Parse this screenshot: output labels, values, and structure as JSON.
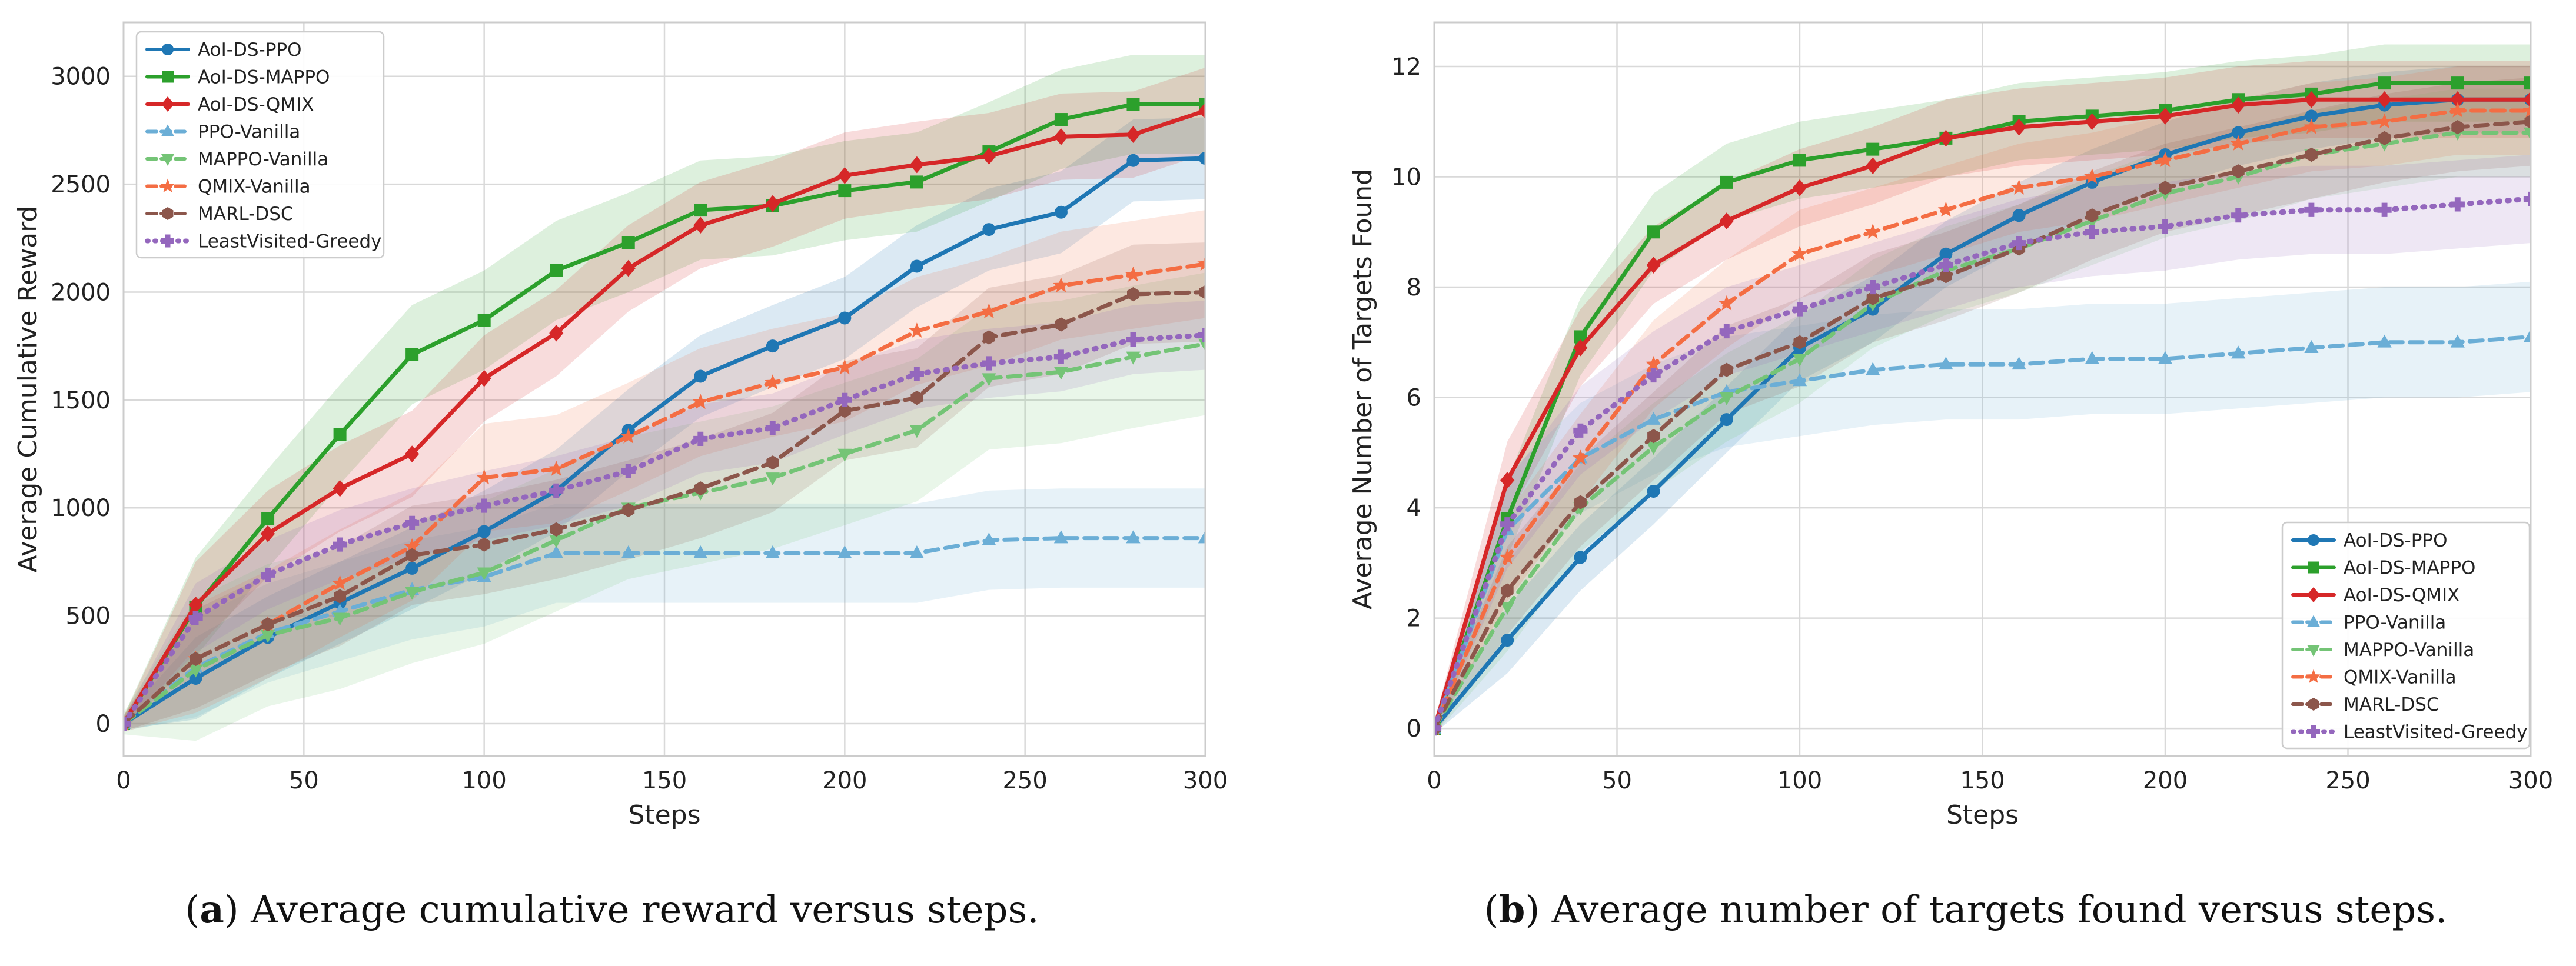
{
  "figure": {
    "captions": [
      {
        "label": "a",
        "text": "Average cumulative reward versus steps."
      },
      {
        "label": "b",
        "text": "Average number of targets found versus steps."
      }
    ]
  },
  "series_styles": [
    {
      "name": "AoI-DS-PPO",
      "color": "#1f77b4",
      "marker": "circle",
      "dash": "solid"
    },
    {
      "name": "AoI-DS-MAPPO",
      "color": "#2ca02c",
      "marker": "square",
      "dash": "solid"
    },
    {
      "name": "AoI-DS-QMIX",
      "color": "#d62728",
      "marker": "diamond",
      "dash": "solid"
    },
    {
      "name": "PPO-Vanilla",
      "color": "#6baed6",
      "marker": "triangle-up",
      "dash": "dashed"
    },
    {
      "name": "MAPPO-Vanilla",
      "color": "#74c476",
      "marker": "triangle-down",
      "dash": "dashed"
    },
    {
      "name": "QMIX-Vanilla",
      "color": "#f46d43",
      "marker": "star",
      "dash": "dashed"
    },
    {
      "name": "MARL-DSC",
      "color": "#8c564b",
      "marker": "hexagon",
      "dash": "dashed"
    },
    {
      "name": "LeastVisited-Greedy",
      "color": "#9467bd",
      "marker": "plus",
      "dash": "dotted"
    }
  ],
  "chart_data": [
    {
      "type": "line",
      "xlabel": "Steps",
      "ylabel": "Average Cumulative Reward",
      "xlim": [
        0,
        300
      ],
      "ylim": [
        -150,
        3250
      ],
      "xticks": [
        0,
        50,
        100,
        150,
        200,
        250,
        300
      ],
      "yticks": [
        0,
        500,
        1000,
        1500,
        2000,
        2500,
        3000
      ],
      "grid": true,
      "legend_position": "top-left",
      "x": [
        0,
        20,
        40,
        60,
        80,
        100,
        120,
        140,
        160,
        180,
        200,
        220,
        240,
        260,
        280,
        300
      ],
      "series": [
        {
          "name": "AoI-DS-PPO",
          "values": [
            0,
            210,
            400,
            560,
            720,
            890,
            1080,
            1360,
            1610,
            1750,
            1880,
            2120,
            2290,
            2370,
            2610,
            2620
          ],
          "band": 190
        },
        {
          "name": "AoI-DS-MAPPO",
          "values": [
            0,
            540,
            950,
            1340,
            1710,
            1870,
            2100,
            2230,
            2380,
            2400,
            2470,
            2510,
            2650,
            2800,
            2870,
            2870
          ],
          "band": 230
        },
        {
          "name": "AoI-DS-QMIX",
          "values": [
            0,
            550,
            880,
            1090,
            1250,
            1600,
            1810,
            2110,
            2310,
            2410,
            2540,
            2590,
            2630,
            2720,
            2730,
            2840
          ],
          "band": 200
        },
        {
          "name": "PPO-Vanilla",
          "values": [
            0,
            260,
            420,
            520,
            620,
            680,
            790,
            790,
            790,
            790,
            790,
            790,
            850,
            860,
            860,
            860
          ],
          "band": 230
        },
        {
          "name": "MAPPO-Vanilla",
          "values": [
            0,
            250,
            410,
            490,
            610,
            700,
            850,
            1000,
            1070,
            1140,
            1250,
            1360,
            1600,
            1630,
            1700,
            1760
          ],
          "band": 330
        },
        {
          "name": "QMIX-Vanilla",
          "values": [
            0,
            300,
            460,
            650,
            820,
            1140,
            1180,
            1330,
            1490,
            1580,
            1650,
            1820,
            1910,
            2030,
            2080,
            2130
          ],
          "band": 250
        },
        {
          "name": "MARL-DSC",
          "values": [
            0,
            300,
            460,
            590,
            780,
            830,
            900,
            990,
            1090,
            1210,
            1450,
            1510,
            1790,
            1850,
            1990,
            2000
          ],
          "band": 230
        },
        {
          "name": "LeastVisited-Greedy",
          "values": [
            0,
            490,
            690,
            830,
            930,
            1010,
            1080,
            1170,
            1320,
            1370,
            1500,
            1620,
            1670,
            1700,
            1780,
            1800
          ],
          "band": 160
        }
      ]
    },
    {
      "type": "line",
      "xlabel": "Steps",
      "ylabel": "Average Number of Targets Found",
      "xlim": [
        0,
        300
      ],
      "ylim": [
        -0.5,
        12.8
      ],
      "xticks": [
        0,
        50,
        100,
        150,
        200,
        250,
        300
      ],
      "yticks": [
        0,
        2,
        4,
        6,
        8,
        10,
        12
      ],
      "grid": true,
      "legend_position": "bottom-right",
      "x": [
        0,
        20,
        40,
        60,
        80,
        100,
        120,
        140,
        160,
        180,
        200,
        220,
        240,
        260,
        280,
        300
      ],
      "series": [
        {
          "name": "AoI-DS-PPO",
          "values": [
            0,
            1.6,
            3.1,
            4.3,
            5.6,
            6.9,
            7.6,
            8.6,
            9.3,
            9.9,
            10.4,
            10.8,
            11.1,
            11.3,
            11.4,
            11.4
          ],
          "band": 0.6
        },
        {
          "name": "AoI-DS-MAPPO",
          "values": [
            0,
            3.8,
            7.1,
            9.0,
            9.9,
            10.3,
            10.5,
            10.7,
            11.0,
            11.1,
            11.2,
            11.4,
            11.5,
            11.7,
            11.7,
            11.7
          ],
          "band": 0.7
        },
        {
          "name": "AoI-DS-QMIX",
          "values": [
            0,
            4.5,
            6.9,
            8.4,
            9.2,
            9.8,
            10.2,
            10.7,
            10.9,
            11.0,
            11.1,
            11.3,
            11.4,
            11.4,
            11.4,
            11.4
          ],
          "band": 0.7
        },
        {
          "name": "PPO-Vanilla",
          "values": [
            0,
            3.6,
            4.9,
            5.6,
            6.1,
            6.3,
            6.5,
            6.6,
            6.6,
            6.7,
            6.7,
            6.8,
            6.9,
            7.0,
            7.0,
            7.1
          ],
          "band": 1.0
        },
        {
          "name": "MAPPO-Vanilla",
          "values": [
            0,
            2.2,
            4.0,
            5.1,
            6.0,
            6.7,
            7.7,
            8.3,
            8.7,
            9.2,
            9.7,
            10.0,
            10.4,
            10.6,
            10.8,
            10.8
          ],
          "band": 0.8
        },
        {
          "name": "QMIX-Vanilla",
          "values": [
            0,
            3.1,
            4.9,
            6.6,
            7.7,
            8.6,
            9.0,
            9.4,
            9.8,
            10.0,
            10.3,
            10.6,
            10.9,
            11.0,
            11.2,
            11.2
          ],
          "band": 0.8
        },
        {
          "name": "MARL-DSC",
          "values": [
            0,
            2.5,
            4.1,
            5.3,
            6.5,
            7.0,
            7.8,
            8.2,
            8.7,
            9.3,
            9.8,
            10.1,
            10.4,
            10.7,
            10.9,
            11.0
          ],
          "band": 0.8
        },
        {
          "name": "LeastVisited-Greedy",
          "values": [
            0,
            3.7,
            5.4,
            6.4,
            7.2,
            7.6,
            8.0,
            8.4,
            8.8,
            9.0,
            9.1,
            9.3,
            9.4,
            9.4,
            9.5,
            9.6
          ],
          "band": 0.8
        }
      ]
    }
  ]
}
